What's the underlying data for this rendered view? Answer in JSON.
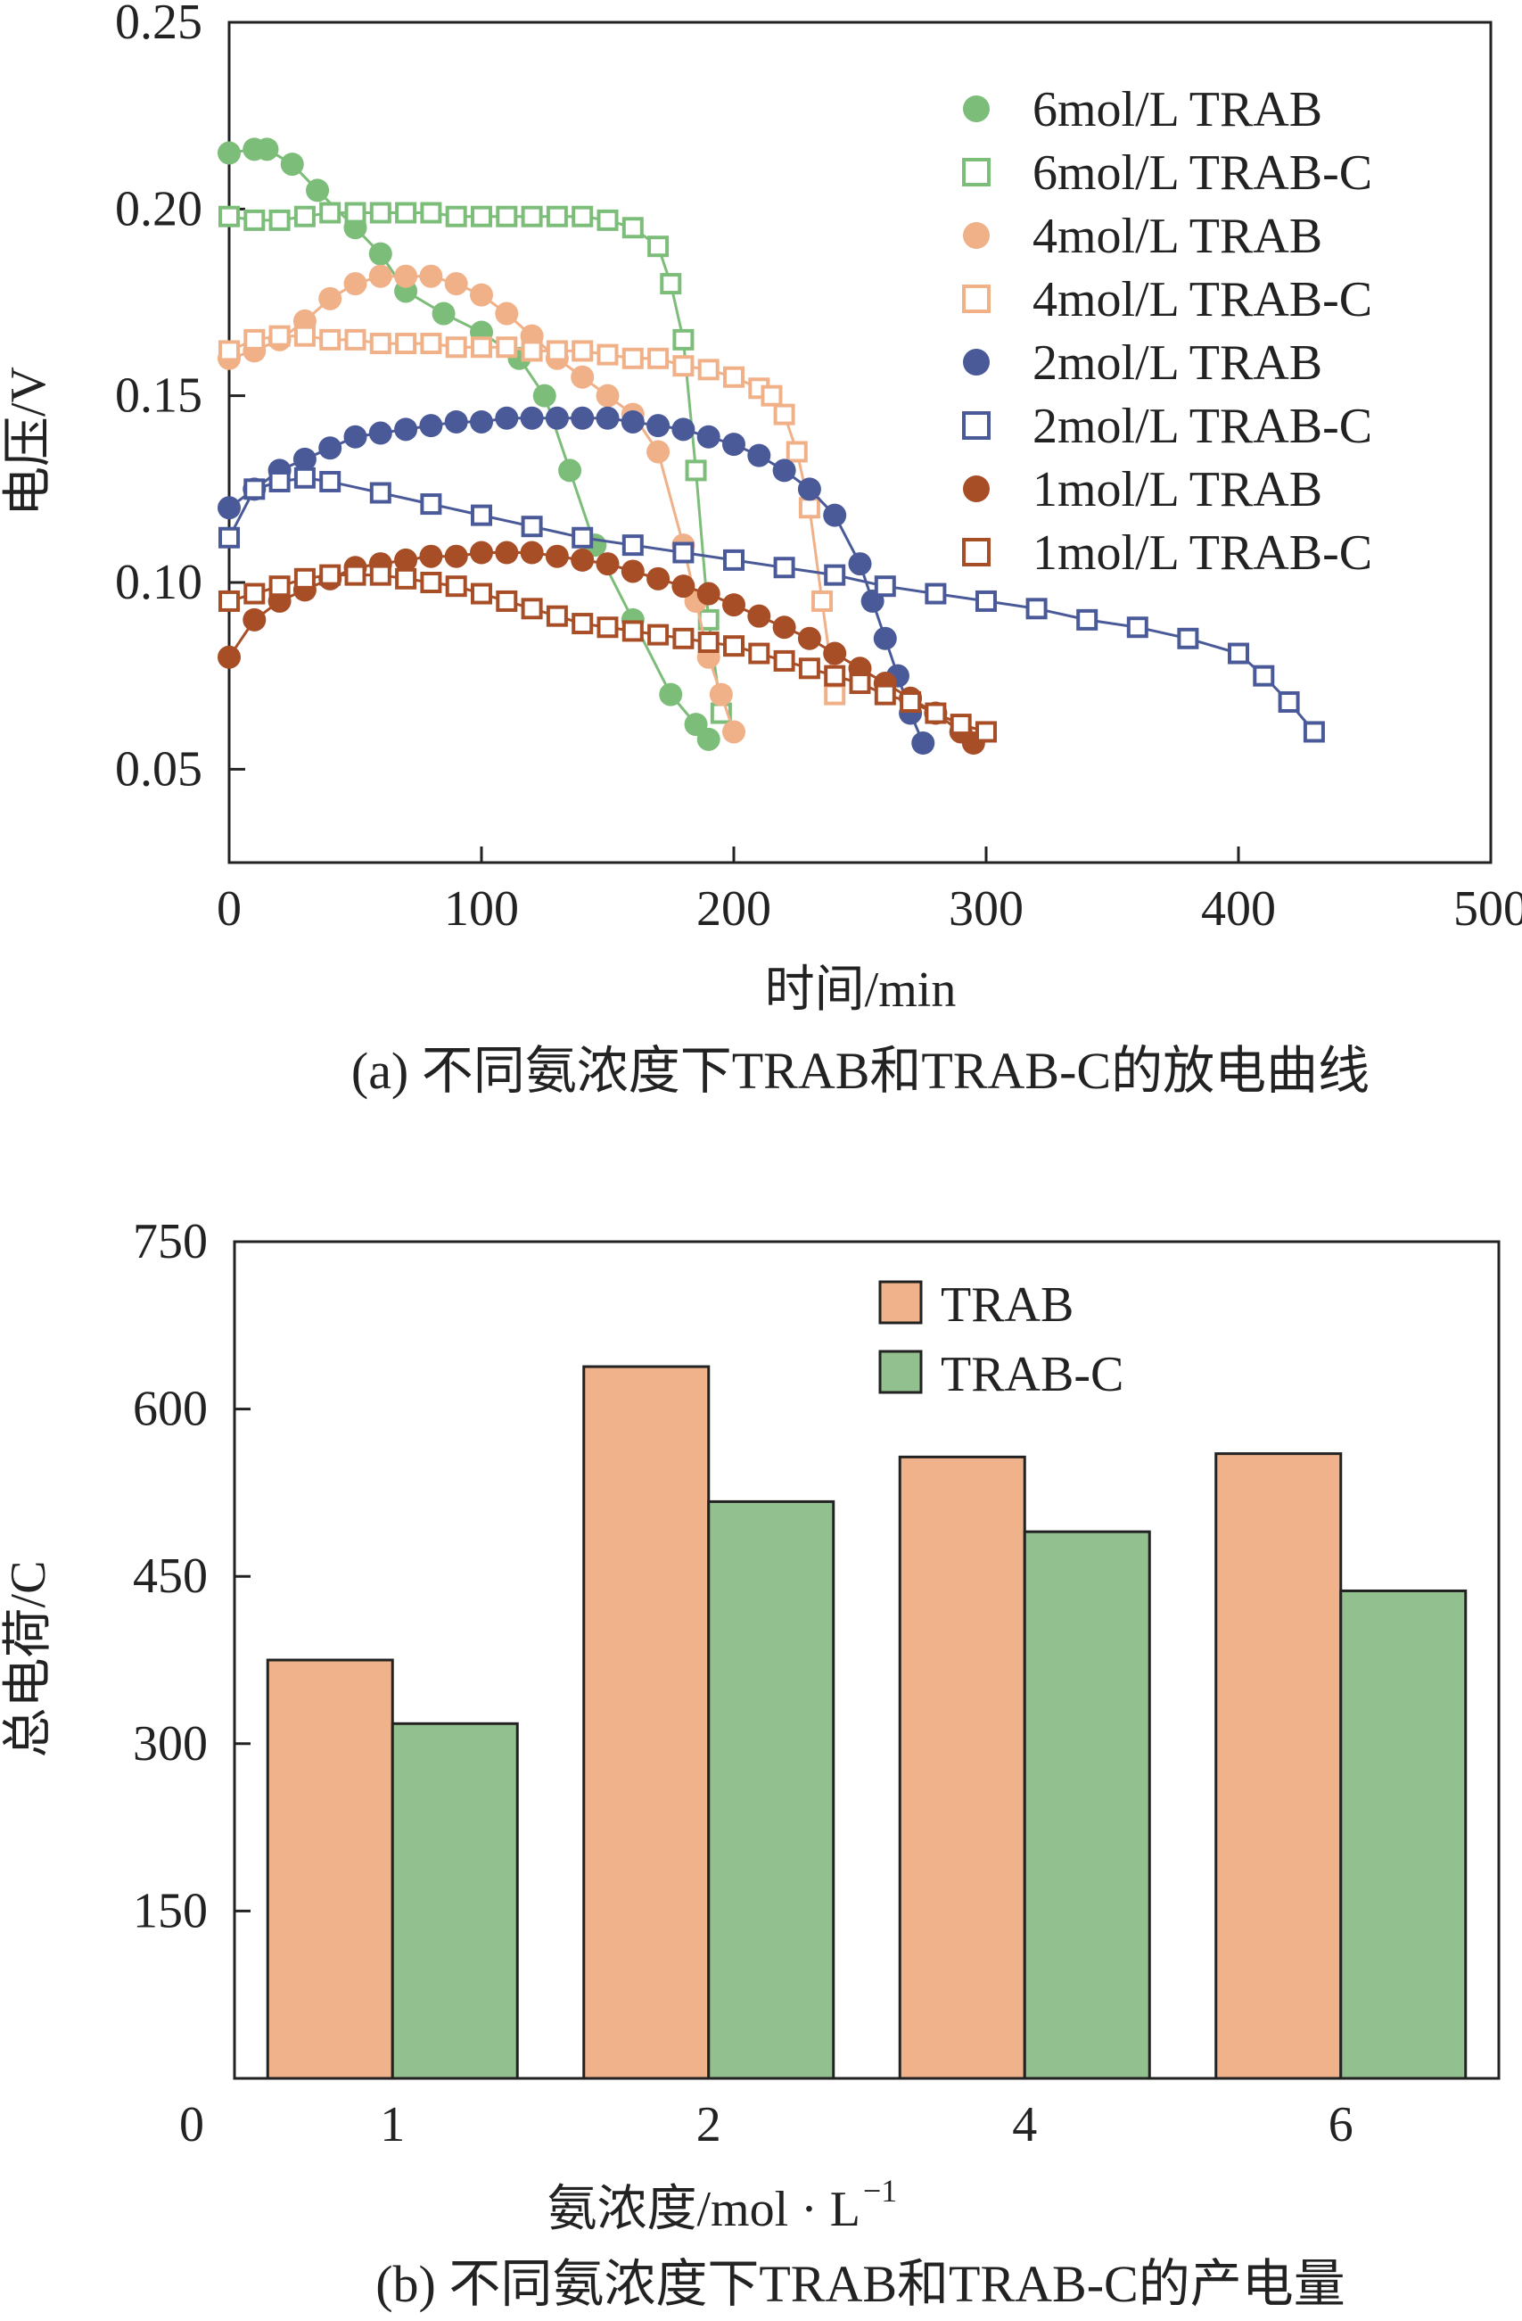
{
  "chart_data": [
    {
      "type": "line",
      "title": "(a) 不同氨浓度下TRAB和TRAB-C的放电曲线",
      "xlabel": "时间/min",
      "ylabel": "电压/V",
      "xlim": [
        0,
        500
      ],
      "ylim": [
        0.025,
        0.25
      ],
      "x_ticks": [
        "0",
        "100",
        "200",
        "300",
        "400",
        "500"
      ],
      "y_ticks": [
        "0.05",
        "0.10",
        "0.15",
        "0.20",
        "0.25"
      ],
      "legend_position": "top-right",
      "series": [
        {
          "name": "6mol/L TRAB",
          "color": "#7dbd7a",
          "marker": "filled-circle",
          "x": [
            0,
            10,
            15,
            25,
            35,
            50,
            60,
            70,
            85,
            100,
            115,
            125,
            135,
            145,
            160,
            175,
            185,
            190
          ],
          "y": [
            0.215,
            0.216,
            0.216,
            0.212,
            0.205,
            0.195,
            0.188,
            0.178,
            0.172,
            0.167,
            0.16,
            0.15,
            0.13,
            0.11,
            0.09,
            0.07,
            0.062,
            0.058
          ]
        },
        {
          "name": "6mol/L TRAB-C",
          "color": "#7dbd7a",
          "marker": "open-square",
          "x": [
            0,
            10,
            20,
            30,
            40,
            50,
            60,
            70,
            80,
            90,
            100,
            110,
            120,
            130,
            140,
            150,
            160,
            170,
            175,
            180,
            185,
            190,
            195
          ],
          "y": [
            0.198,
            0.197,
            0.197,
            0.198,
            0.199,
            0.199,
            0.199,
            0.199,
            0.199,
            0.198,
            0.198,
            0.198,
            0.198,
            0.198,
            0.198,
            0.197,
            0.195,
            0.19,
            0.18,
            0.165,
            0.13,
            0.09,
            0.065
          ]
        },
        {
          "name": "4mol/L TRAB",
          "color": "#f0b088",
          "marker": "filled-circle",
          "x": [
            0,
            10,
            20,
            30,
            40,
            50,
            60,
            70,
            80,
            90,
            100,
            110,
            120,
            130,
            140,
            150,
            160,
            170,
            180,
            185,
            190,
            195,
            200
          ],
          "y": [
            0.16,
            0.162,
            0.165,
            0.17,
            0.176,
            0.18,
            0.182,
            0.182,
            0.182,
            0.18,
            0.177,
            0.172,
            0.166,
            0.16,
            0.155,
            0.15,
            0.145,
            0.135,
            0.11,
            0.095,
            0.08,
            0.07,
            0.06
          ]
        },
        {
          "name": "4mol/L TRAB-C",
          "color": "#f0b088",
          "marker": "open-square",
          "x": [
            0,
            10,
            20,
            30,
            40,
            50,
            60,
            70,
            80,
            90,
            100,
            110,
            120,
            130,
            140,
            150,
            160,
            170,
            180,
            190,
            200,
            210,
            215,
            220,
            225,
            230,
            235,
            240
          ],
          "y": [
            0.162,
            0.165,
            0.166,
            0.166,
            0.165,
            0.165,
            0.164,
            0.164,
            0.164,
            0.163,
            0.163,
            0.163,
            0.162,
            0.162,
            0.162,
            0.161,
            0.16,
            0.16,
            0.158,
            0.157,
            0.155,
            0.152,
            0.15,
            0.145,
            0.135,
            0.12,
            0.095,
            0.07
          ]
        },
        {
          "name": "2mol/L TRAB",
          "color": "#4a5a99",
          "marker": "filled-circle",
          "x": [
            0,
            10,
            20,
            30,
            40,
            50,
            60,
            70,
            80,
            90,
            100,
            110,
            120,
            130,
            140,
            150,
            160,
            170,
            180,
            190,
            200,
            210,
            220,
            230,
            240,
            250,
            255,
            260,
            265,
            270,
            275
          ],
          "y": [
            0.12,
            0.125,
            0.13,
            0.133,
            0.136,
            0.139,
            0.14,
            0.141,
            0.142,
            0.143,
            0.143,
            0.144,
            0.144,
            0.144,
            0.144,
            0.144,
            0.143,
            0.142,
            0.141,
            0.139,
            0.137,
            0.134,
            0.13,
            0.125,
            0.118,
            0.105,
            0.095,
            0.085,
            0.075,
            0.065,
            0.057
          ]
        },
        {
          "name": "2mol/L TRAB-C",
          "color": "#4a5a99",
          "marker": "open-square",
          "x": [
            0,
            10,
            20,
            30,
            40,
            60,
            80,
            100,
            120,
            140,
            160,
            180,
            200,
            220,
            240,
            260,
            280,
            300,
            320,
            340,
            360,
            380,
            400,
            410,
            420,
            430
          ],
          "y": [
            0.112,
            0.125,
            0.127,
            0.128,
            0.127,
            0.124,
            0.121,
            0.118,
            0.115,
            0.112,
            0.11,
            0.108,
            0.106,
            0.104,
            0.102,
            0.099,
            0.097,
            0.095,
            0.093,
            0.09,
            0.088,
            0.085,
            0.081,
            0.075,
            0.068,
            0.06
          ]
        },
        {
          "name": "1mol/L TRAB",
          "color": "#a84e27",
          "marker": "filled-circle",
          "x": [
            0,
            10,
            20,
            30,
            40,
            50,
            60,
            70,
            80,
            90,
            100,
            110,
            120,
            130,
            140,
            150,
            160,
            170,
            180,
            190,
            200,
            210,
            220,
            230,
            240,
            250,
            260,
            270,
            280,
            290,
            295
          ],
          "y": [
            0.08,
            0.09,
            0.095,
            0.098,
            0.101,
            0.104,
            0.105,
            0.106,
            0.107,
            0.107,
            0.108,
            0.108,
            0.108,
            0.107,
            0.106,
            0.105,
            0.103,
            0.101,
            0.099,
            0.097,
            0.094,
            0.091,
            0.088,
            0.085,
            0.081,
            0.077,
            0.073,
            0.069,
            0.065,
            0.06,
            0.057
          ]
        },
        {
          "name": "1mol/L TRAB-C",
          "color": "#a84e27",
          "marker": "open-square",
          "x": [
            0,
            10,
            20,
            30,
            40,
            50,
            60,
            70,
            80,
            90,
            100,
            110,
            120,
            130,
            140,
            150,
            160,
            170,
            180,
            190,
            200,
            210,
            220,
            230,
            240,
            250,
            260,
            270,
            280,
            290,
            300
          ],
          "y": [
            0.095,
            0.097,
            0.099,
            0.101,
            0.102,
            0.102,
            0.102,
            0.101,
            0.1,
            0.099,
            0.097,
            0.095,
            0.093,
            0.091,
            0.089,
            0.088,
            0.087,
            0.086,
            0.085,
            0.084,
            0.083,
            0.081,
            0.079,
            0.077,
            0.075,
            0.073,
            0.07,
            0.068,
            0.065,
            0.062,
            0.06
          ]
        }
      ]
    },
    {
      "type": "bar",
      "title": "(b) 不同氨浓度下TRAB和TRAB-C的产电量",
      "xlabel": "氨浓度/mol · L",
      "xlabel_sup": "−1",
      "ylabel": "总电荷/C",
      "ylim": [
        0,
        750
      ],
      "origin_label": "0",
      "y_ticks": [
        "150",
        "300",
        "450",
        "600",
        "750"
      ],
      "categories": [
        "1",
        "2",
        "4",
        "6"
      ],
      "legend_position": "top-center",
      "series": [
        {
          "name": "TRAB",
          "color": "#efb28a",
          "values": [
            375,
            638,
            557,
            560
          ]
        },
        {
          "name": "TRAB-C",
          "color": "#92c08e",
          "values": [
            318,
            517,
            490,
            437
          ]
        }
      ]
    }
  ]
}
